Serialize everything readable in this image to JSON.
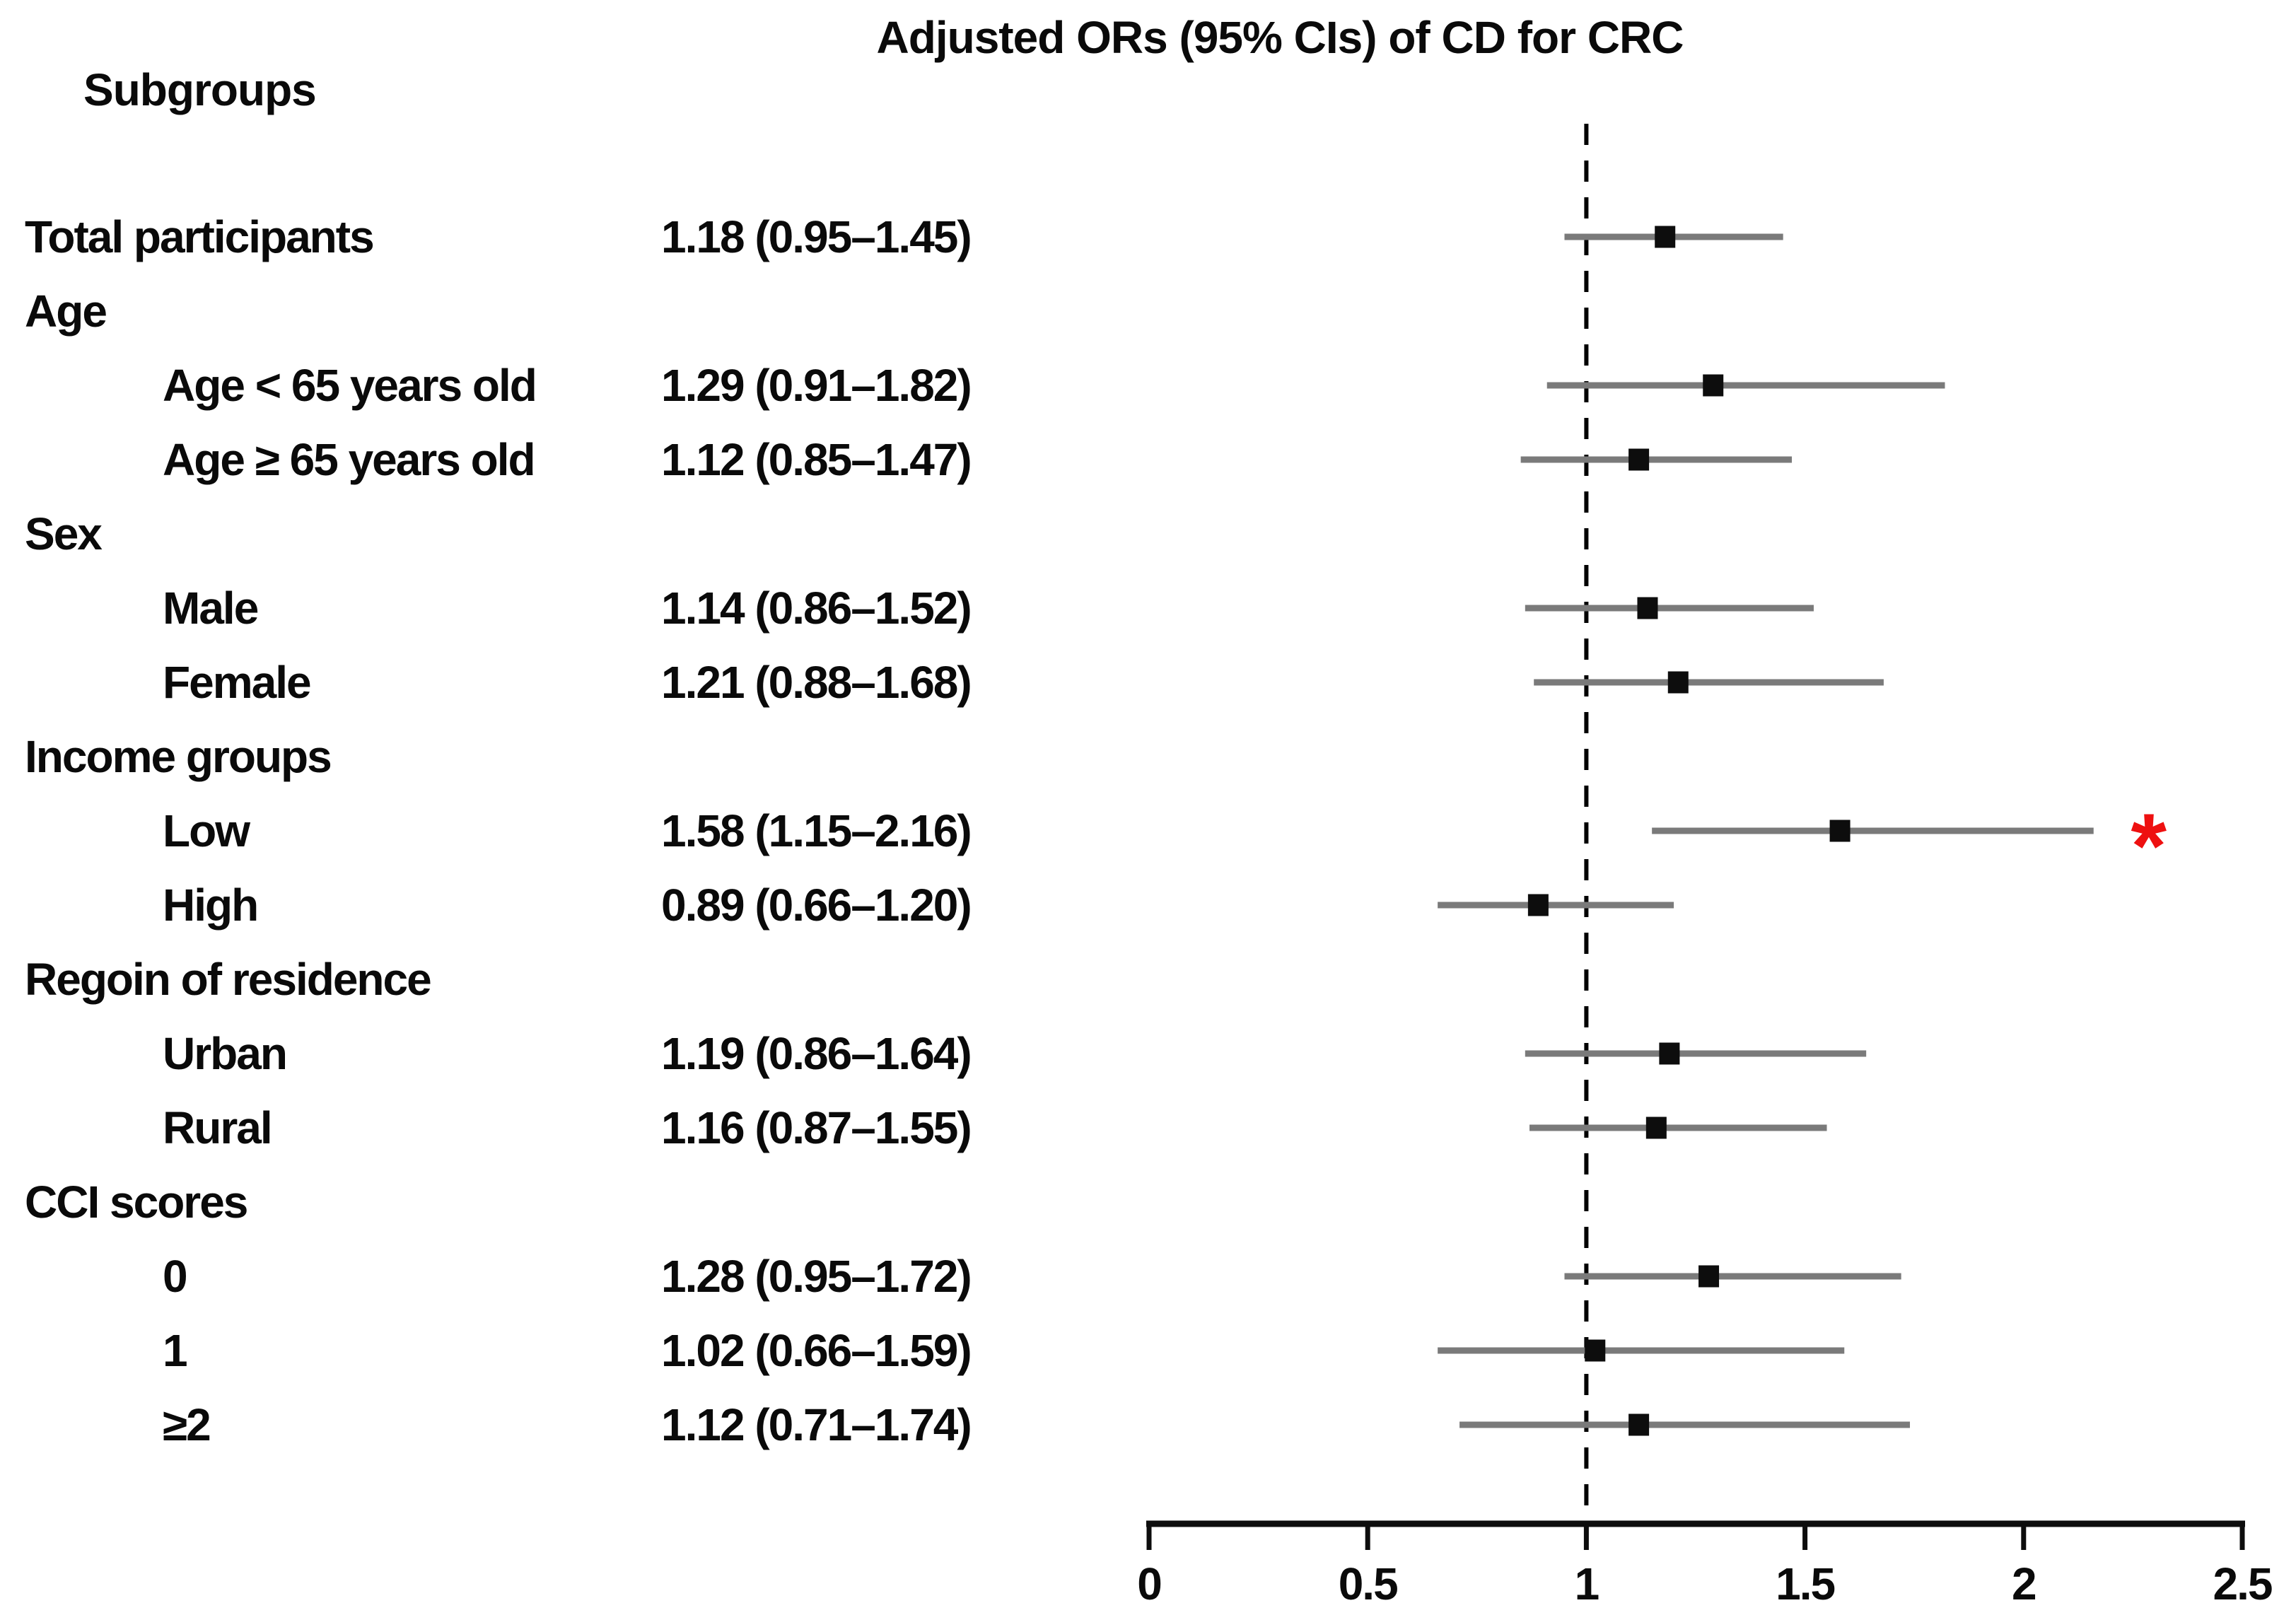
{
  "chart_data": {
    "type": "scatter",
    "variant": "forest-plot",
    "title": "Adjusted ORs (95% CIs) of CD for CRC",
    "left_header": "Subgroups",
    "xlim": [
      0,
      2.5
    ],
    "x_ticks": [
      0,
      0.5,
      1,
      1.5,
      2,
      2.5
    ],
    "x_tick_labels": [
      "0",
      "0.5",
      "1",
      "1.5",
      "2",
      "2.5"
    ],
    "reference_line": 1,
    "significance_marker": "*",
    "legend": "none",
    "grid": "off",
    "rows": [
      {
        "label": "Total participants",
        "header": false,
        "indent": 0,
        "value_text": "1.18 (0.95–1.45)",
        "or": 1.18,
        "ci_low": 0.95,
        "ci_high": 1.45,
        "significant": false
      },
      {
        "label": "Age",
        "header": true,
        "indent": 0
      },
      {
        "label": "Age < 65 years old",
        "header": false,
        "indent": 1,
        "value_text": "1.29 (0.91–1.82)",
        "or": 1.29,
        "ci_low": 0.91,
        "ci_high": 1.82,
        "significant": false
      },
      {
        "label": "Age ≥ 65 years old",
        "header": false,
        "indent": 1,
        "value_text": "1.12 (0.85–1.47)",
        "or": 1.12,
        "ci_low": 0.85,
        "ci_high": 1.47,
        "significant": false
      },
      {
        "label": "Sex",
        "header": true,
        "indent": 0
      },
      {
        "label": "Male",
        "header": false,
        "indent": 1,
        "value_text": "1.14 (0.86–1.52)",
        "or": 1.14,
        "ci_low": 0.86,
        "ci_high": 1.52,
        "significant": false
      },
      {
        "label": "Female",
        "header": false,
        "indent": 1,
        "value_text": "1.21 (0.88–1.68)",
        "or": 1.21,
        "ci_low": 0.88,
        "ci_high": 1.68,
        "significant": false
      },
      {
        "label": "Income groups",
        "header": true,
        "indent": 0
      },
      {
        "label": "Low",
        "header": false,
        "indent": 1,
        "value_text": "1.58 (1.15–2.16)",
        "or": 1.58,
        "ci_low": 1.15,
        "ci_high": 2.16,
        "significant": true
      },
      {
        "label": "High",
        "header": false,
        "indent": 1,
        "value_text": "0.89 (0.66–1.20)",
        "or": 0.89,
        "ci_low": 0.66,
        "ci_high": 1.2,
        "significant": false
      },
      {
        "label": "Regoin of residence",
        "header": true,
        "indent": 0
      },
      {
        "label": "Urban",
        "header": false,
        "indent": 1,
        "value_text": "1.19 (0.86–1.64)",
        "or": 1.19,
        "ci_low": 0.86,
        "ci_high": 1.64,
        "significant": false
      },
      {
        "label": "Rural",
        "header": false,
        "indent": 1,
        "value_text": "1.16 (0.87–1.55)",
        "or": 1.16,
        "ci_low": 0.87,
        "ci_high": 1.55,
        "significant": false
      },
      {
        "label": "CCI scores",
        "header": true,
        "indent": 0
      },
      {
        "label": "0",
        "header": false,
        "indent": 1,
        "value_text": "1.28 (0.95–1.72)",
        "or": 1.28,
        "ci_low": 0.95,
        "ci_high": 1.72,
        "significant": false
      },
      {
        "label": "1",
        "header": false,
        "indent": 1,
        "value_text": "1.02 (0.66–1.59)",
        "or": 1.02,
        "ci_low": 0.66,
        "ci_high": 1.59,
        "significant": false
      },
      {
        "label": "≥2",
        "header": false,
        "indent": 1,
        "value_text": "1.12 (0.71–1.74)",
        "or": 1.12,
        "ci_low": 0.71,
        "ci_high": 1.74,
        "significant": false
      }
    ],
    "colors": {
      "ci_line": "#7a7a7a",
      "marker": "#0d0d0d",
      "reference_line": "#000000",
      "axis": "#0d0d0d",
      "significant_marker": "#ee1010",
      "background": "#ffffff",
      "text": "#0a0a0a"
    }
  }
}
